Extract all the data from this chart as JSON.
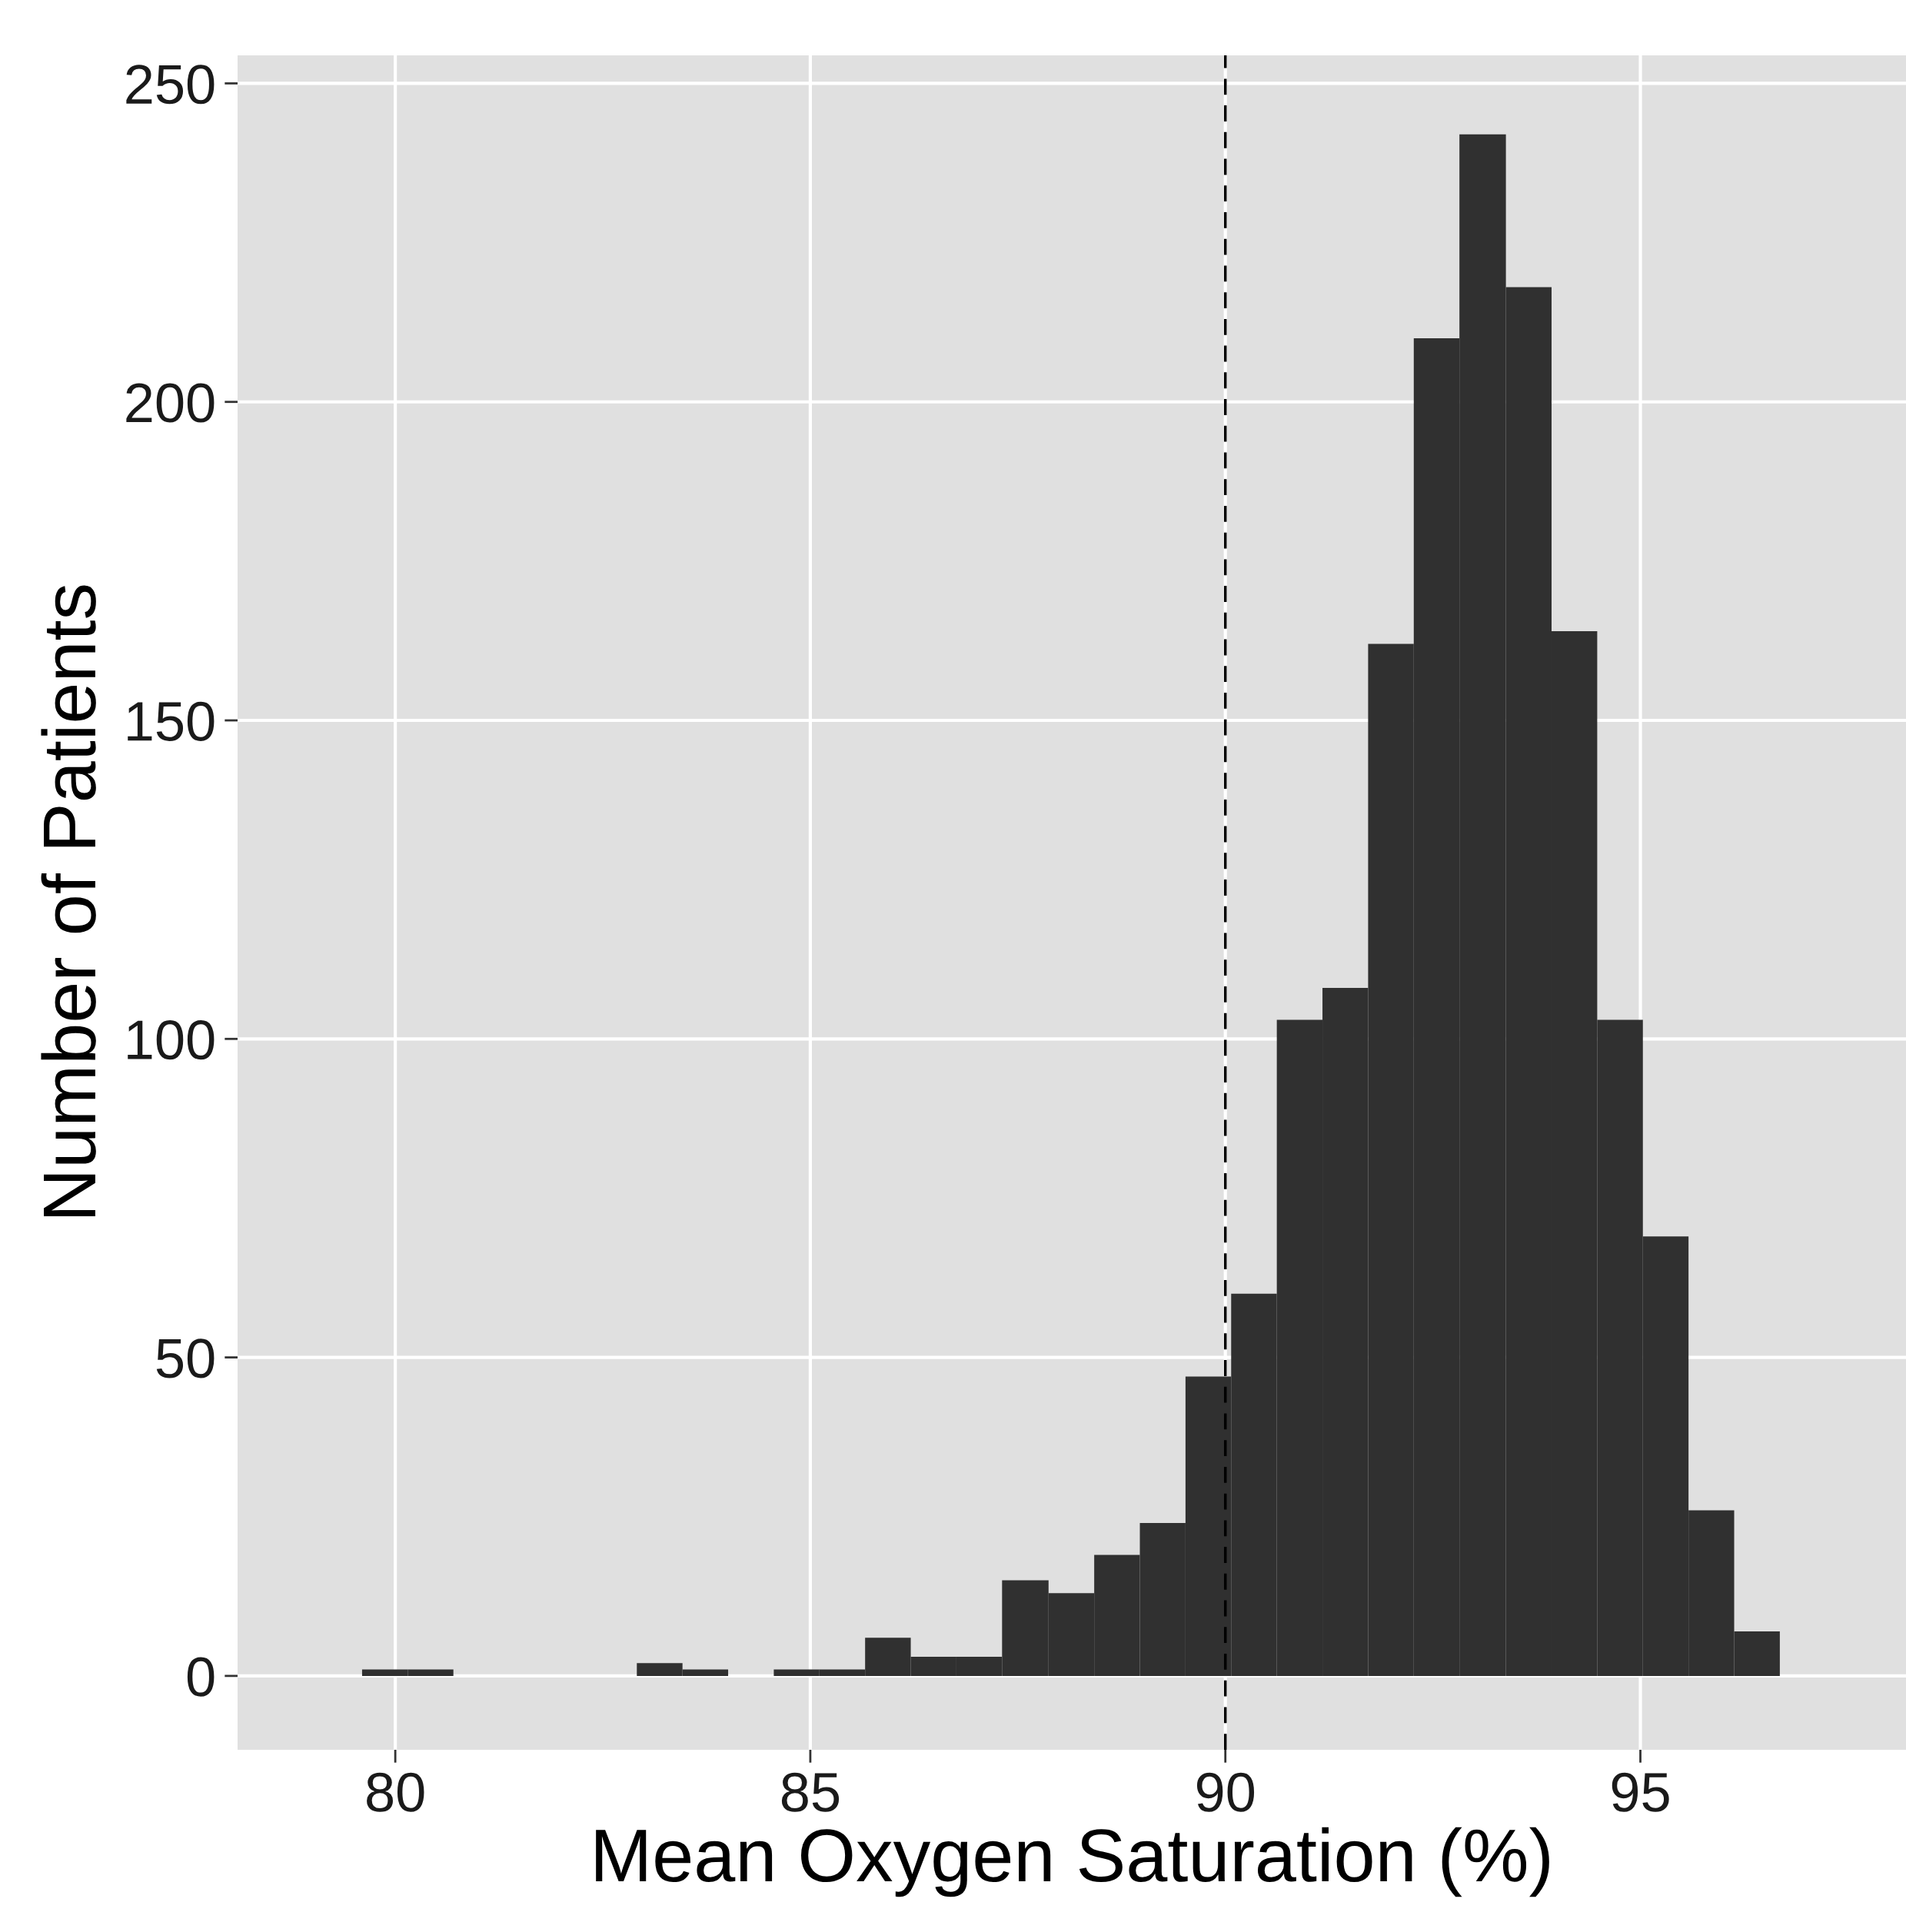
{
  "chart_data": {
    "type": "histogram",
    "xlabel": "Mean Oxygen Saturation (%)",
    "ylabel": "Number of Patients",
    "bins": [
      79.6,
      80.15,
      80.7,
      82.91,
      83.46,
      84.01,
      84.56,
      85.11,
      85.66,
      86.21,
      86.76,
      87.31,
      87.87,
      88.42,
      88.97,
      89.52,
      90.07,
      90.62,
      91.17,
      91.72,
      92.27,
      92.82,
      93.38,
      93.93,
      94.48,
      95.03,
      95.58,
      96.13,
      96.68
    ],
    "values": [
      1,
      1,
      0,
      2,
      1,
      0,
      1,
      1,
      6,
      3,
      3,
      15,
      13,
      19,
      24,
      47,
      60,
      103,
      108,
      162,
      210,
      242,
      218,
      164,
      103,
      69,
      26,
      7
    ],
    "color": "#303030",
    "xlim": [
      78.1,
      98.2
    ],
    "xticks": [
      80,
      85,
      90,
      95
    ],
    "ylim": [
      -11.6,
      254.4
    ],
    "yticks": [
      0,
      50,
      100,
      150,
      200,
      250
    ],
    "grid": true,
    "ref_lines": [
      {
        "axis": "x",
        "value": 90,
        "color": "#000000",
        "line_style": "dashed"
      }
    ]
  }
}
